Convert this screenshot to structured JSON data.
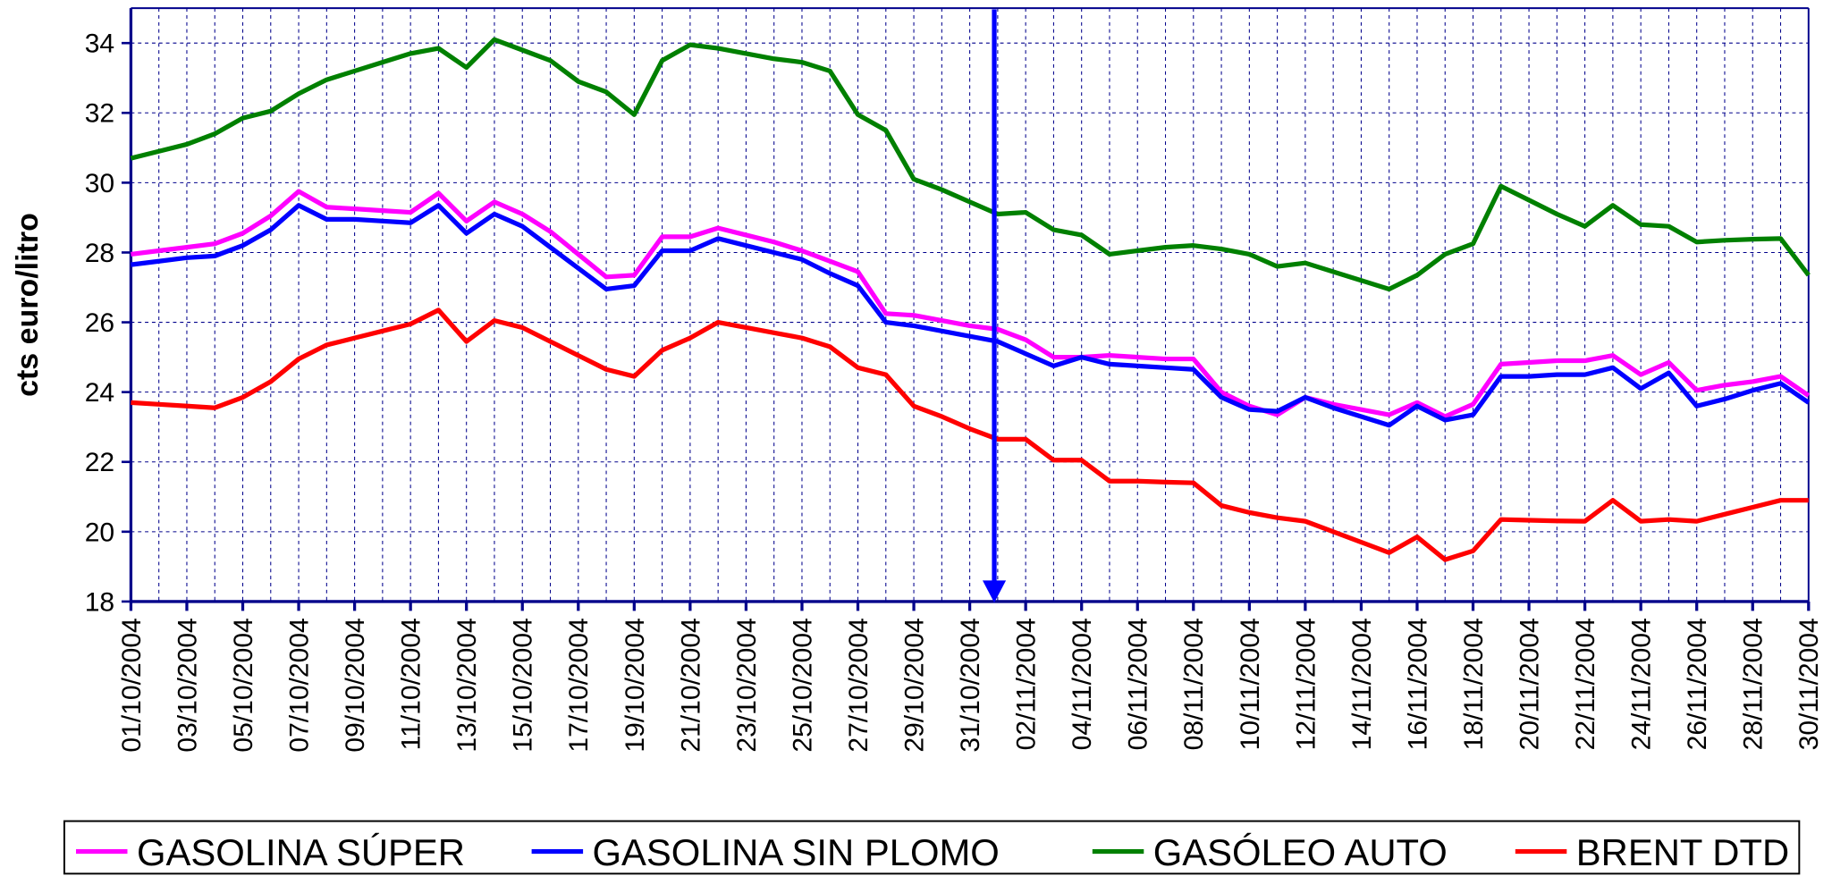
{
  "chart_data": {
    "type": "line",
    "y_label": "cts euro/litro",
    "categories": [
      "01/10/2004",
      null,
      "03/10/2004",
      null,
      "05/10/2004",
      null,
      "07/10/2004",
      null,
      "09/10/2004",
      null,
      "11/10/2004",
      null,
      "13/10/2004",
      null,
      "15/10/2004",
      null,
      "17/10/2004",
      null,
      "19/10/2004",
      null,
      "21/10/2004",
      null,
      "23/10/2004",
      null,
      "25/10/2004",
      null,
      "27/10/2004",
      null,
      "29/10/2004",
      null,
      "31/10/2004",
      null,
      "02/11/2004",
      null,
      "04/11/2004",
      null,
      "06/11/2004",
      null,
      "08/11/2004",
      null,
      "10/11/2004",
      null,
      "12/11/2004",
      null,
      "14/11/2004",
      null,
      "16/11/2004",
      null,
      "18/11/2004",
      null,
      "20/11/2004",
      null,
      "22/11/2004",
      null,
      "24/11/2004",
      null,
      "26/11/2004",
      null,
      "28/11/2004",
      null,
      "30/11/2004"
    ],
    "series": [
      {
        "name": "GASOLINA SÚPER",
        "color": "#ff00ff",
        "values": [
          27.95,
          28.05,
          28.15,
          28.25,
          28.55,
          29.05,
          29.75,
          29.3,
          29.25,
          29.2,
          29.15,
          29.7,
          28.9,
          29.45,
          29.1,
          28.6,
          27.95,
          27.3,
          27.35,
          28.45,
          28.45,
          28.7,
          28.5,
          28.3,
          28.05,
          27.75,
          27.45,
          26.25,
          26.2,
          26.05,
          25.9,
          25.8,
          25.5,
          25.0,
          25.0,
          25.05,
          25.0,
          24.95,
          24.95,
          24.0,
          23.6,
          23.35,
          23.85,
          23.65,
          23.5,
          23.35,
          23.7,
          23.3,
          23.65,
          24.8,
          24.85,
          24.9,
          24.9,
          25.05,
          24.5,
          24.85,
          24.05,
          24.2,
          24.3,
          24.45,
          23.9
        ]
      },
      {
        "name": "GASOLINA SIN PLOMO",
        "color": "#0000ff",
        "values": [
          27.65,
          27.75,
          27.85,
          27.9,
          28.2,
          28.65,
          29.35,
          28.95,
          28.95,
          28.9,
          28.85,
          29.35,
          28.55,
          29.1,
          28.75,
          28.15,
          27.55,
          26.95,
          27.05,
          28.05,
          28.05,
          28.4,
          28.2,
          28.0,
          27.8,
          27.4,
          27.05,
          26.0,
          25.9,
          25.75,
          25.6,
          25.45,
          25.1,
          24.75,
          25.0,
          24.8,
          24.75,
          24.7,
          24.65,
          23.85,
          23.5,
          23.45,
          23.85,
          23.55,
          23.3,
          23.05,
          23.6,
          23.2,
          23.35,
          24.45,
          24.45,
          24.5,
          24.5,
          24.7,
          24.1,
          24.55,
          23.6,
          23.8,
          24.05,
          24.25,
          23.7
        ]
      },
      {
        "name": "GASÓLEO AUTO",
        "color": "#008000",
        "values": [
          30.7,
          30.9,
          31.1,
          31.4,
          31.85,
          32.05,
          32.55,
          32.95,
          33.2,
          33.45,
          33.7,
          33.85,
          33.3,
          34.1,
          33.8,
          33.5,
          32.9,
          32.6,
          31.95,
          33.5,
          33.95,
          33.85,
          33.7,
          33.55,
          33.45,
          33.2,
          31.95,
          31.5,
          30.1,
          29.8,
          29.45,
          29.1,
          29.15,
          28.65,
          28.5,
          27.95,
          28.05,
          28.15,
          28.2,
          28.1,
          27.95,
          27.6,
          27.7,
          27.45,
          27.2,
          26.95,
          27.35,
          27.95,
          28.25,
          29.9,
          29.5,
          29.1,
          28.75,
          29.35,
          28.8,
          28.75,
          28.3,
          28.35,
          28.38,
          28.4,
          27.35
        ]
      },
      {
        "name": "BRENT DTD",
        "color": "#ff0000",
        "values": [
          23.7,
          23.65,
          23.6,
          23.55,
          23.85,
          24.3,
          24.95,
          25.35,
          25.55,
          25.75,
          25.95,
          26.35,
          25.45,
          26.05,
          25.85,
          25.45,
          25.05,
          24.65,
          24.45,
          25.2,
          25.55,
          26.0,
          25.85,
          25.7,
          25.55,
          25.3,
          24.7,
          24.5,
          23.6,
          23.3,
          22.95,
          22.65,
          22.65,
          22.05,
          22.05,
          21.45,
          21.45,
          21.42,
          21.4,
          20.75,
          20.55,
          20.4,
          20.3,
          20.0,
          19.7,
          19.4,
          19.85,
          19.2,
          19.45,
          20.35,
          20.33,
          20.31,
          20.3,
          20.9,
          20.3,
          20.35,
          20.3,
          20.5,
          20.7,
          20.9,
          20.9
        ]
      }
    ],
    "ylim": [
      18,
      35
    ],
    "yticks": [
      18,
      20,
      22,
      24,
      26,
      28,
      30,
      32,
      34
    ],
    "grid": true
  }
}
